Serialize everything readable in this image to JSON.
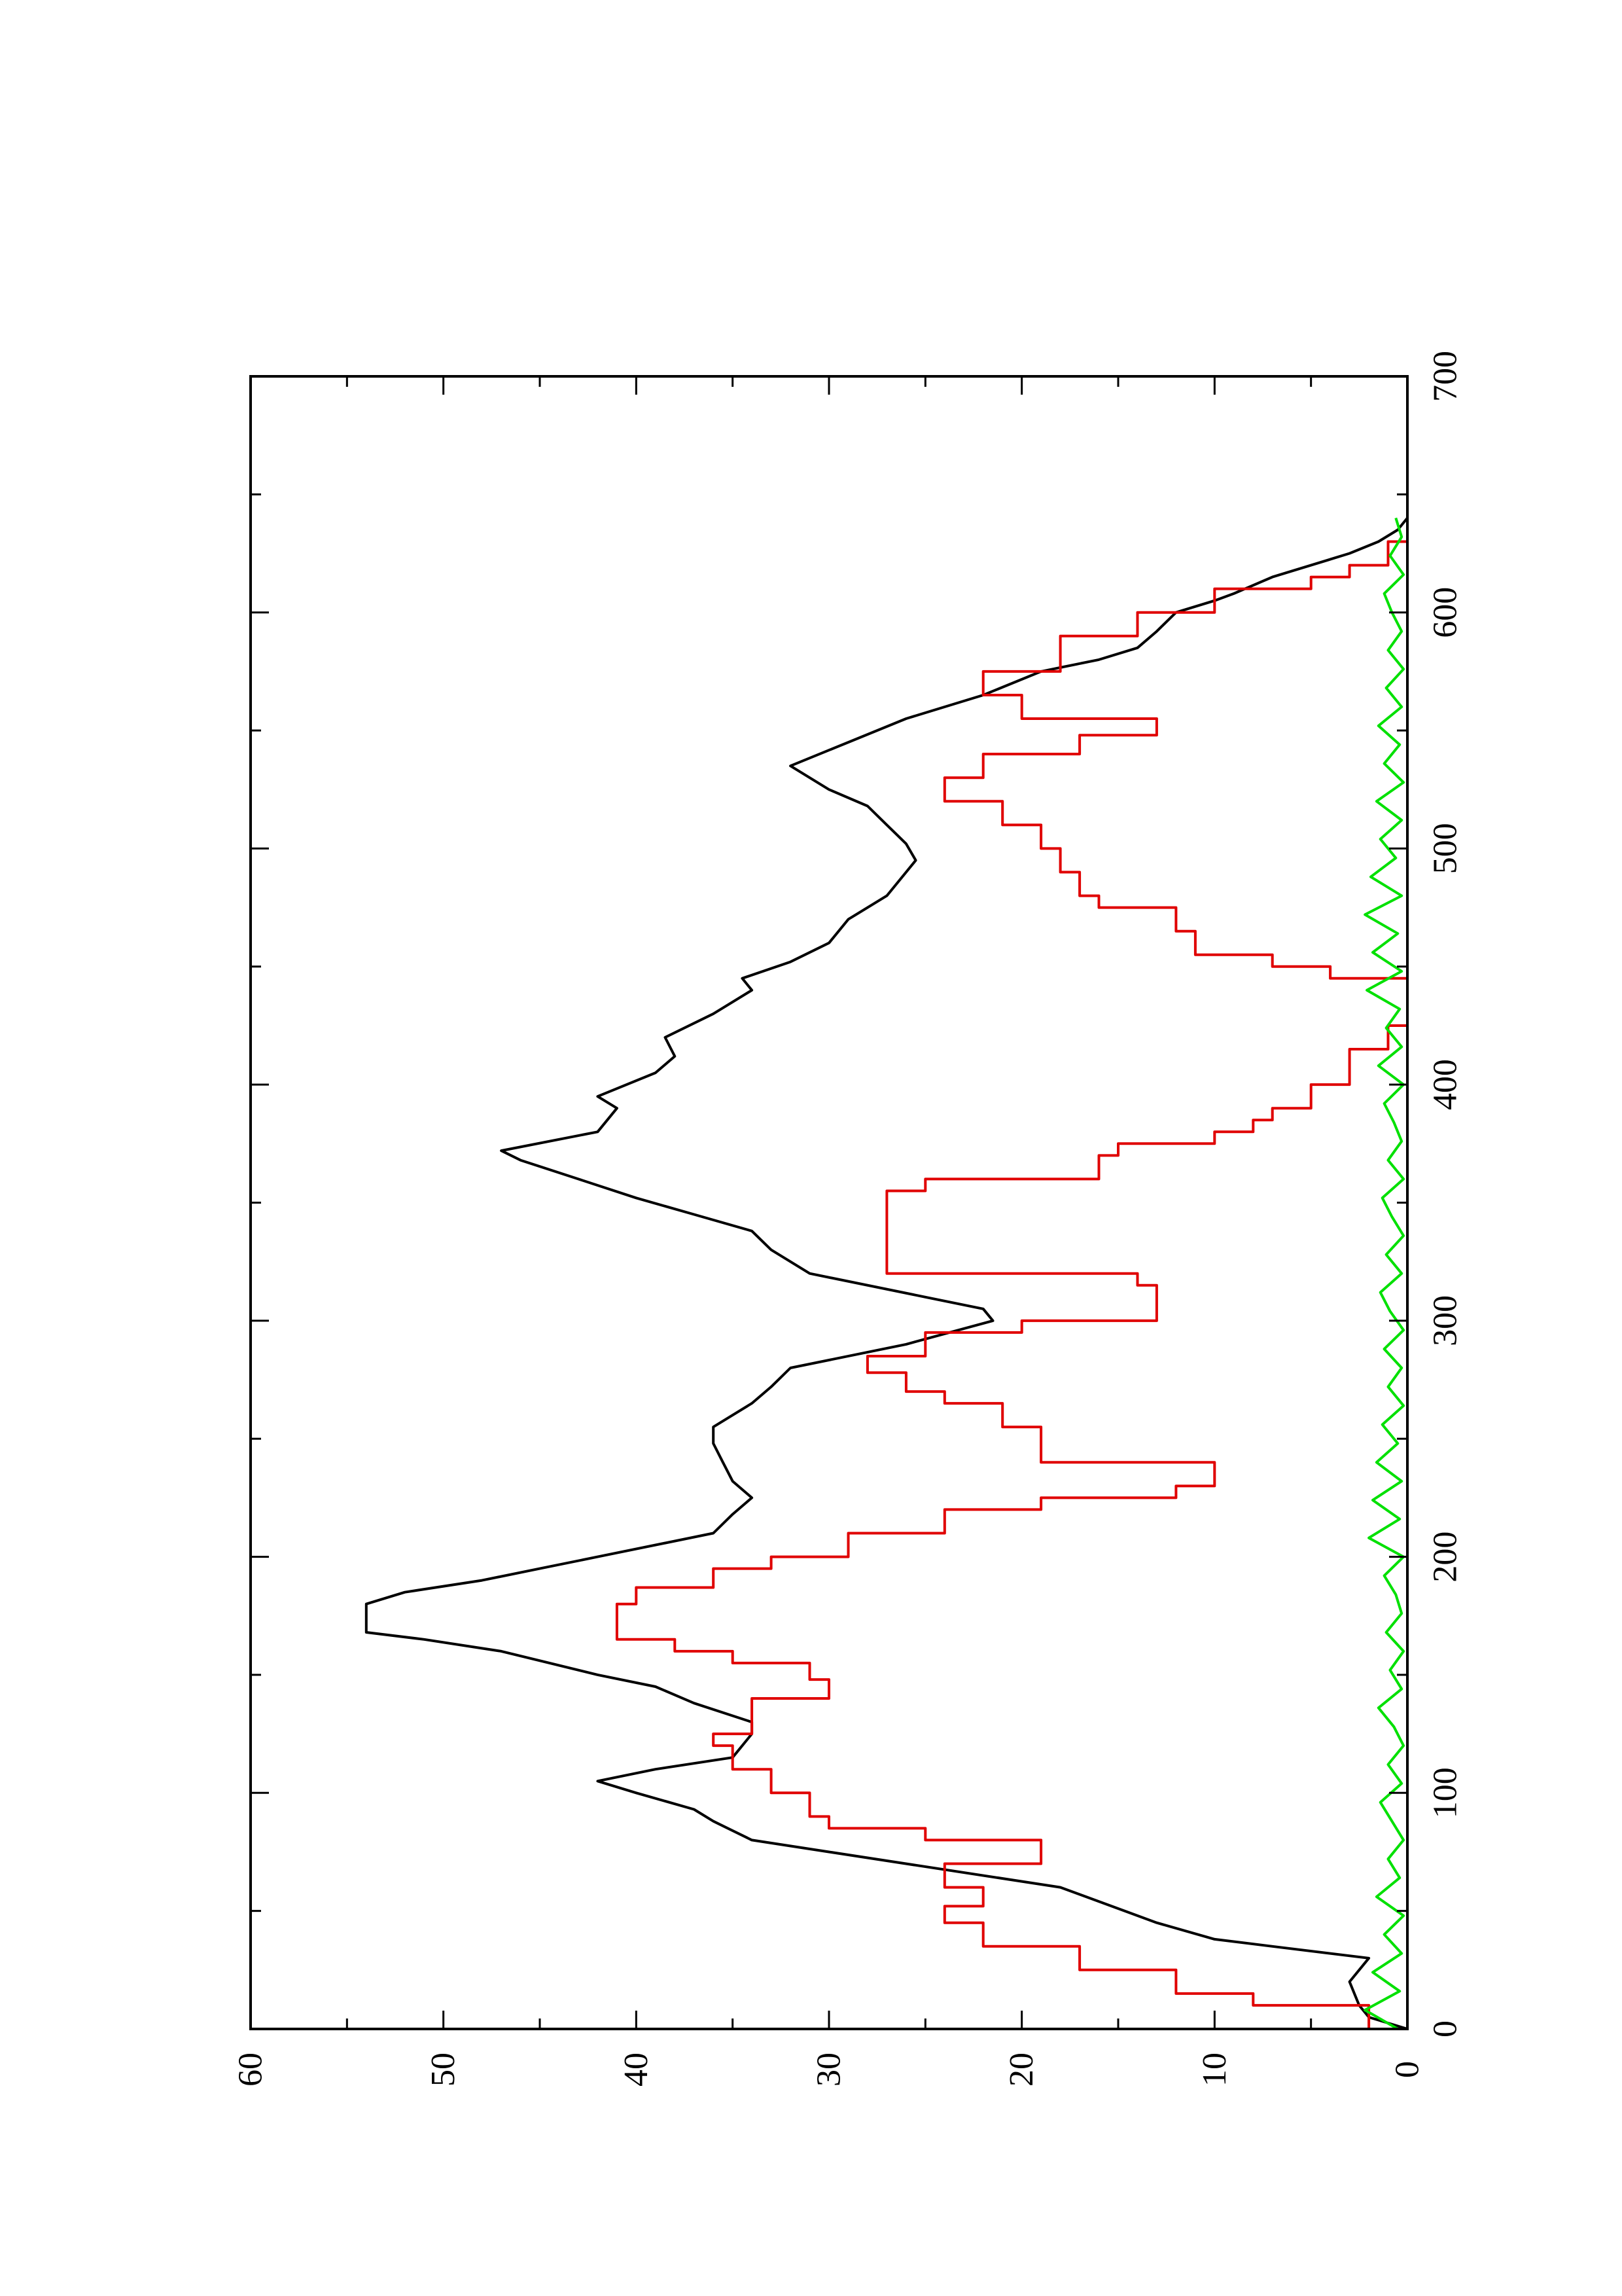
{
  "chart_data": {
    "type": "line",
    "orientation": "rotated-90-ccw",
    "title": "",
    "xlabel": "",
    "ylabel": "",
    "xlim": [
      0,
      700
    ],
    "ylim": [
      0,
      60
    ],
    "x_ticks": [
      0,
      100,
      200,
      300,
      400,
      500,
      600,
      700
    ],
    "y_ticks": [
      0,
      10,
      20,
      30,
      40,
      50,
      60
    ],
    "x_tick_labels": [
      "0",
      "100",
      "200",
      "300",
      "400",
      "500",
      "600",
      "700"
    ],
    "y_tick_labels": [
      "0",
      "10",
      "20",
      "30",
      "40",
      "50",
      "60"
    ],
    "grid": false,
    "legend": "none",
    "series": [
      {
        "color": "#000000",
        "step": false,
        "x": [
          0,
          5,
          10,
          20,
          30,
          35,
          38,
          45,
          60,
          75,
          80,
          88,
          93,
          100,
          105,
          110,
          115,
          125,
          130,
          138,
          145,
          150,
          160,
          165,
          168,
          180,
          185,
          190,
          195,
          200,
          210,
          218,
          225,
          232,
          240,
          248,
          255,
          265,
          272,
          280,
          290,
          300,
          305,
          310,
          320,
          330,
          338,
          345,
          352,
          360,
          368,
          372,
          380,
          390,
          395,
          405,
          412,
          420,
          430,
          440,
          445,
          452,
          460,
          470,
          480,
          490,
          495,
          502,
          510,
          518,
          525,
          535,
          545,
          555,
          565,
          575,
          580,
          585,
          592,
          600,
          605,
          608,
          615,
          620,
          625,
          630,
          635,
          640
        ],
        "y": [
          0,
          2,
          2.5,
          3,
          2,
          7,
          10,
          13,
          18,
          30,
          34,
          36,
          37,
          40,
          42,
          39,
          35,
          34,
          34,
          37,
          39,
          42,
          47,
          51,
          54,
          54,
          52,
          48,
          45,
          42,
          36,
          35,
          34,
          35,
          35.5,
          36,
          36,
          34,
          33,
          32,
          26,
          21.5,
          22,
          25,
          31,
          33,
          34,
          37,
          40,
          43,
          46,
          47,
          42,
          41,
          42,
          39,
          38,
          38.5,
          36,
          34,
          34.5,
          32,
          30,
          29,
          27,
          26,
          25.5,
          26,
          27,
          28,
          30,
          32,
          29,
          26,
          22,
          19,
          16,
          14,
          13,
          12,
          10,
          9,
          7,
          5,
          3,
          1.5,
          0.5,
          0
        ]
      },
      {
        "color": "#e00000",
        "step": true,
        "x": [
          0,
          10,
          15,
          25,
          35,
          45,
          52,
          60,
          70,
          80,
          85,
          90,
          100,
          110,
          120,
          125,
          140,
          148,
          155,
          160,
          165,
          180,
          187,
          195,
          200,
          210,
          220,
          225,
          230,
          240,
          255,
          265,
          270,
          278,
          285,
          295,
          300,
          315,
          320,
          355,
          360,
          370,
          375,
          380,
          385,
          390,
          400,
          415,
          425,
          435,
          440,
          445,
          450,
          455,
          465,
          475,
          480,
          490,
          500,
          510,
          520,
          530,
          540,
          548,
          555,
          565,
          575,
          590,
          600,
          610,
          615,
          620,
          630
        ],
        "y": [
          2,
          8,
          12,
          17,
          22,
          24,
          22,
          24,
          19,
          25,
          30,
          31,
          33,
          35,
          36,
          34,
          30,
          31,
          35,
          38,
          41,
          40,
          36,
          33,
          29,
          24,
          19,
          12,
          10,
          19,
          21,
          24,
          26,
          28,
          25,
          20,
          13,
          14,
          27,
          25,
          16,
          15,
          10,
          8,
          7,
          5,
          3,
          1,
          0,
          0,
          0,
          4,
          7,
          11,
          12,
          16,
          17,
          18,
          19,
          21,
          24,
          22,
          17,
          13,
          20,
          22,
          18,
          14,
          10,
          5,
          3,
          1,
          0
        ]
      },
      {
        "color": "#00e000",
        "step": false,
        "x": [
          0,
          8,
          16,
          24,
          32,
          40,
          48,
          56,
          64,
          72,
          80,
          88,
          96,
          104,
          112,
          120,
          128,
          136,
          144,
          152,
          160,
          168,
          176,
          184,
          192,
          200,
          208,
          216,
          224,
          232,
          240,
          248,
          256,
          264,
          272,
          280,
          288,
          296,
          304,
          312,
          320,
          328,
          336,
          344,
          352,
          360,
          368,
          376,
          384,
          392,
          400,
          408,
          416,
          424,
          432,
          440,
          448,
          456,
          464,
          472,
          480,
          488,
          496,
          504,
          512,
          520,
          528,
          536,
          544,
          552,
          560,
          568,
          576,
          584,
          592,
          600,
          608,
          616,
          624,
          632,
          640
        ],
        "y": [
          0.5,
          2.2,
          0.4,
          1.8,
          0.3,
          1.2,
          0.2,
          1.6,
          0.4,
          1.0,
          0.2,
          0.8,
          1.4,
          0.3,
          1.0,
          0.2,
          0.7,
          1.5,
          0.3,
          0.9,
          0.2,
          1.1,
          0.3,
          0.6,
          1.2,
          0.2,
          2.0,
          0.4,
          1.8,
          0.3,
          1.6,
          0.5,
          1.3,
          0.2,
          1.0,
          0.3,
          1.2,
          0.2,
          0.9,
          1.4,
          0.3,
          1.1,
          0.2,
          0.8,
          1.3,
          0.2,
          1.0,
          0.3,
          0.7,
          1.2,
          0.2,
          1.5,
          0.3,
          1.1,
          0.4,
          2.1,
          0.3,
          1.8,
          0.5,
          2.2,
          0.3,
          1.9,
          0.6,
          1.4,
          0.3,
          1.6,
          0.2,
          1.2,
          0.4,
          1.5,
          0.3,
          1.1,
          0.2,
          1.0,
          0.3,
          0.8,
          1.2,
          0.2,
          0.9,
          0.3,
          0.6
        ]
      }
    ]
  }
}
